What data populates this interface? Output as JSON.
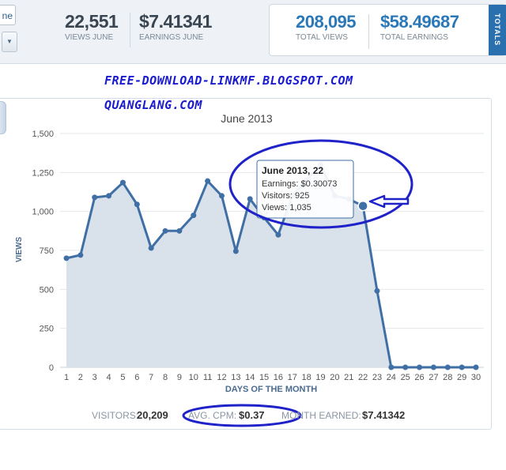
{
  "header": {
    "period_label": "ne",
    "views_june": "22,551",
    "views_june_label": "VIEWS JUNE",
    "earnings_june": "$7.41341",
    "earnings_june_label": "EARNINGS JUNE",
    "total_views": "208,095",
    "total_views_label": "TOTAL VIEWS",
    "total_earnings": "$58.49687",
    "total_earnings_label": "TOTAL EARNINGS",
    "totals_tab": "TOTALS"
  },
  "watermarks": [
    "FREE-DOWNLOAD-LINKMF.BLOGSPOT.COM",
    "QUANGLANG.COM"
  ],
  "tooltip": {
    "title": "June 2013, 22",
    "earnings": "Earnings: $0.30073",
    "visitors": "Visitors: 925",
    "views": "Views: 1,035"
  },
  "footer": {
    "visitors_label": "VISITORS:",
    "visitors_value": "20,209",
    "cpm_label": "AVG. CPM:",
    "cpm_value": "$0.37",
    "month_label": "MONTH EARNED:",
    "month_value": "$7.41342"
  },
  "colors": {
    "series": "#3f6fa5",
    "fill": "#d9e1eb",
    "annotation": "#1f22c8",
    "tooltip_border": "#3f6fa5"
  },
  "chart_data": {
    "type": "area",
    "title": "June 2013",
    "xlabel": "DAYS OF THE MONTH",
    "ylabel": "VIEWS",
    "ylim": [
      0,
      1500
    ],
    "yticks": [
      "0",
      "250",
      "500",
      "750",
      "1,000",
      "1,250",
      "1,500"
    ],
    "ytick_values": [
      0,
      250,
      500,
      750,
      1000,
      1250,
      1500
    ],
    "grid": true,
    "x": [
      1,
      2,
      3,
      4,
      5,
      6,
      7,
      8,
      9,
      10,
      11,
      12,
      13,
      14,
      15,
      16,
      17,
      18,
      19,
      20,
      21,
      22,
      23,
      24,
      25,
      26,
      27,
      28,
      29,
      30
    ],
    "series": [
      {
        "values": [
          700,
          720,
          1090,
          1100,
          1185,
          1045,
          765,
          875,
          875,
          975,
          1195,
          1100,
          745,
          1080,
          960,
          850,
          1100,
          1200,
          1300,
          1100,
          1080,
          1035,
          490,
          0,
          0,
          0,
          0,
          0,
          0,
          0
        ]
      }
    ],
    "highlighted_x": 22
  }
}
